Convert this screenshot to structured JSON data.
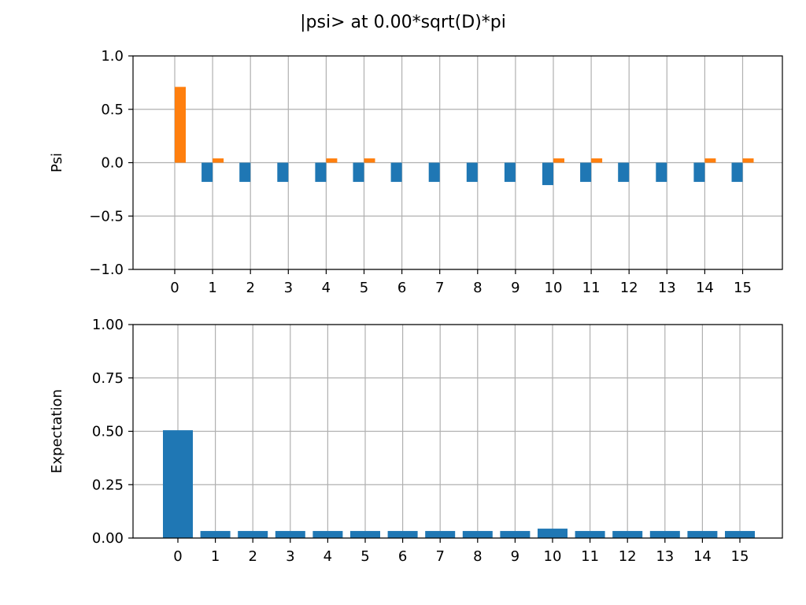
{
  "figure": {
    "title": "|psi> at 0.00*sqrt(D)*pi"
  },
  "chart_data": [
    {
      "type": "bar",
      "ylabel": "Psi",
      "xlabel": "",
      "categories": [
        "0",
        "1",
        "2",
        "3",
        "4",
        "5",
        "6",
        "7",
        "8",
        "9",
        "10",
        "11",
        "12",
        "13",
        "14",
        "15"
      ],
      "ylim": [
        -1.0,
        1.0
      ],
      "yticks": [
        "1.0",
        "0.5",
        "0.0",
        "−0.5",
        "−1.0"
      ],
      "ytick_values": [
        1.0,
        0.5,
        0.0,
        -0.5,
        -1.0
      ],
      "grid": true,
      "series": [
        {
          "color": "#1f77b4",
          "values": [
            0.0,
            -0.18,
            -0.18,
            -0.18,
            -0.18,
            -0.18,
            -0.18,
            -0.18,
            -0.18,
            -0.18,
            -0.21,
            -0.18,
            -0.18,
            -0.18,
            -0.18,
            -0.18
          ]
        },
        {
          "color": "#ff7f0e",
          "values": [
            0.71,
            0.04,
            0.0,
            0.0,
            0.04,
            0.04,
            0.0,
            0.0,
            0.0,
            0.0,
            0.04,
            0.04,
            0.0,
            0.0,
            0.04,
            0.04
          ]
        }
      ]
    },
    {
      "type": "bar",
      "ylabel": "Expectation",
      "xlabel": "",
      "categories": [
        "0",
        "1",
        "2",
        "3",
        "4",
        "5",
        "6",
        "7",
        "8",
        "9",
        "10",
        "11",
        "12",
        "13",
        "14",
        "15"
      ],
      "ylim": [
        0.0,
        1.0
      ],
      "yticks": [
        "1.00",
        "0.75",
        "0.50",
        "0.25",
        "0.00"
      ],
      "ytick_values": [
        1.0,
        0.75,
        0.5,
        0.25,
        0.0
      ],
      "grid": true,
      "series": [
        {
          "color": "#1f77b4",
          "values": [
            0.505,
            0.033,
            0.033,
            0.033,
            0.033,
            0.033,
            0.033,
            0.033,
            0.033,
            0.033,
            0.044,
            0.033,
            0.033,
            0.033,
            0.033,
            0.033
          ]
        }
      ]
    }
  ]
}
